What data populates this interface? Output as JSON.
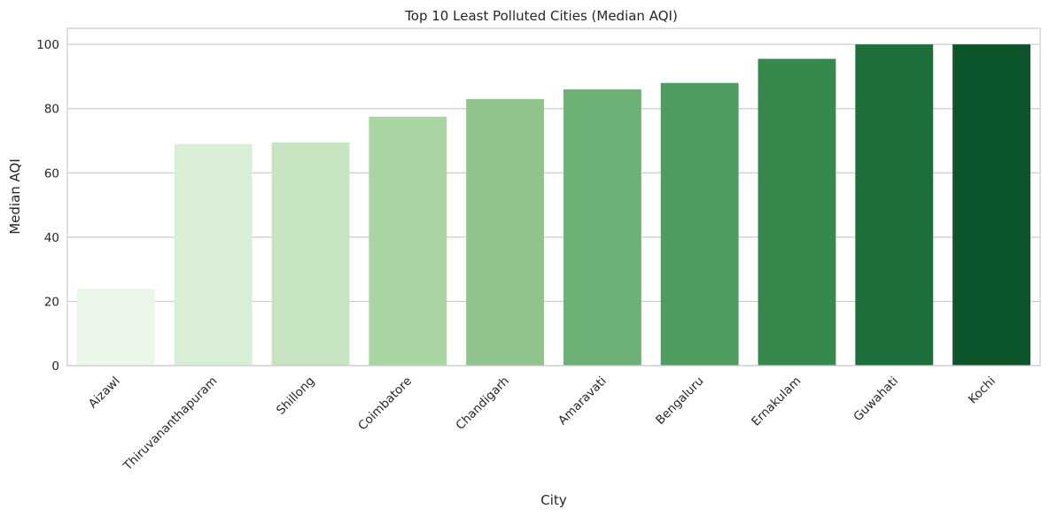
{
  "chart_data": {
    "type": "bar",
    "title": "Top 10 Least Polluted Cities (Median AQI)",
    "xlabel": "City",
    "ylabel": "Median AQI",
    "categories": [
      "Aizawl",
      "Thiruvananthapuram",
      "Shillong",
      "Coimbatore",
      "Chandigarh",
      "Amaravati",
      "Bengaluru",
      "Ernakulam",
      "Guwahati",
      "Kochi"
    ],
    "values": [
      24,
      69,
      69.5,
      77.5,
      83,
      86,
      88,
      95.5,
      100,
      100
    ],
    "colors": [
      "#ebf7e8",
      "#d9eed6",
      "#c6e4c0",
      "#a8d5a2",
      "#8fc48c",
      "#6cb276",
      "#4d9d5f",
      "#36894d",
      "#1d703b",
      "#0c5429"
    ],
    "ylim": [
      0,
      105
    ],
    "yticks": [
      0,
      20,
      40,
      60,
      80,
      100
    ],
    "grid": true,
    "legend": "none"
  }
}
